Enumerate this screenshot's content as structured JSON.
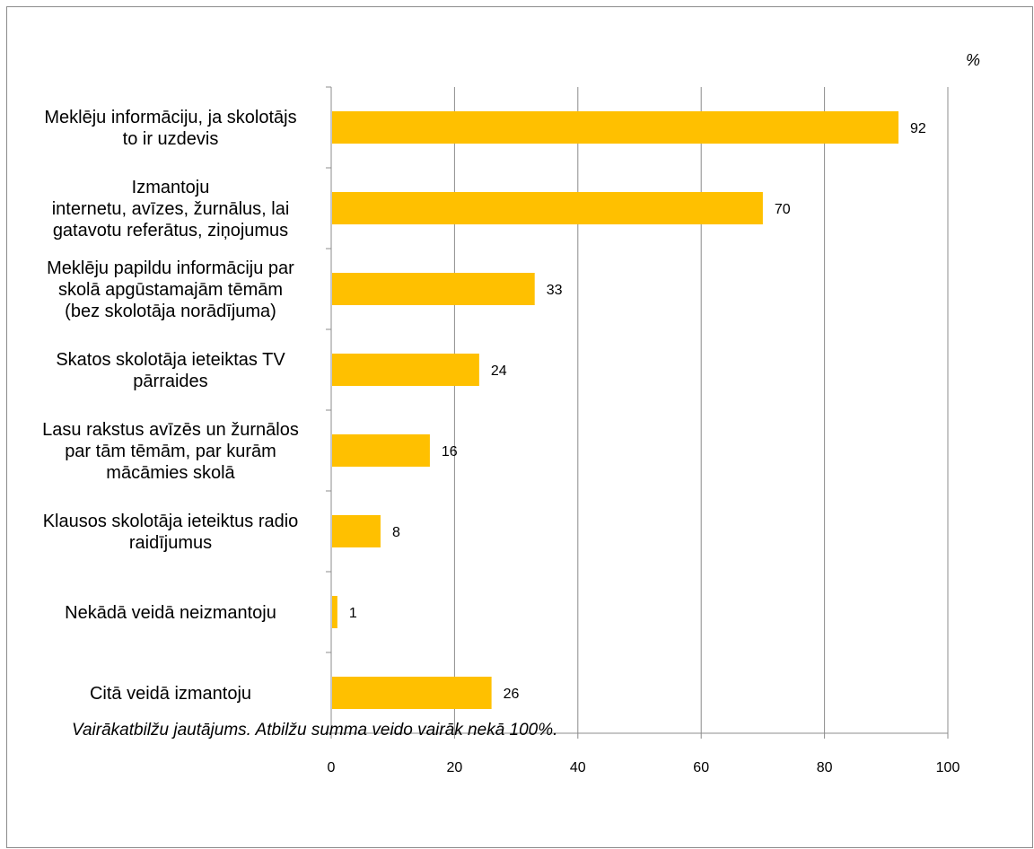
{
  "chart_data": {
    "type": "bar",
    "orientation": "horizontal",
    "categories": [
      "Meklēju informāciju, ja skolotājs\nto ir uzdevis",
      "Izmantoju\ninternetu, avīzes, žurnālus, lai\ngatavotu referātus, ziņojumus",
      "Meklēju papildu informāciju par\nskolā apgūstamajām tēmām\n(bez skolotāja norādījuma)",
      "Skatos skolotāja ieteiktas TV\npārraides",
      "Lasu rakstus avīzēs un žurnālos\npar tām tēmām, par kurām\nmācāmies skolā",
      "Klausos skolotāja ieteiktus radio\nraidījumus",
      "Nekādā veidā neizmantoju",
      "Citā veidā izmantoju"
    ],
    "values": [
      92,
      70,
      33,
      24,
      16,
      8,
      1,
      26
    ],
    "unit": "%",
    "xlim": [
      0,
      100
    ],
    "ticks": [
      0,
      20,
      40,
      60,
      80,
      100
    ],
    "grid": true,
    "bar_color": "#FFC000"
  },
  "footnote": "Vairākatbilžu jautājums. Atbilžu summa veido vairāk nekā 100%."
}
